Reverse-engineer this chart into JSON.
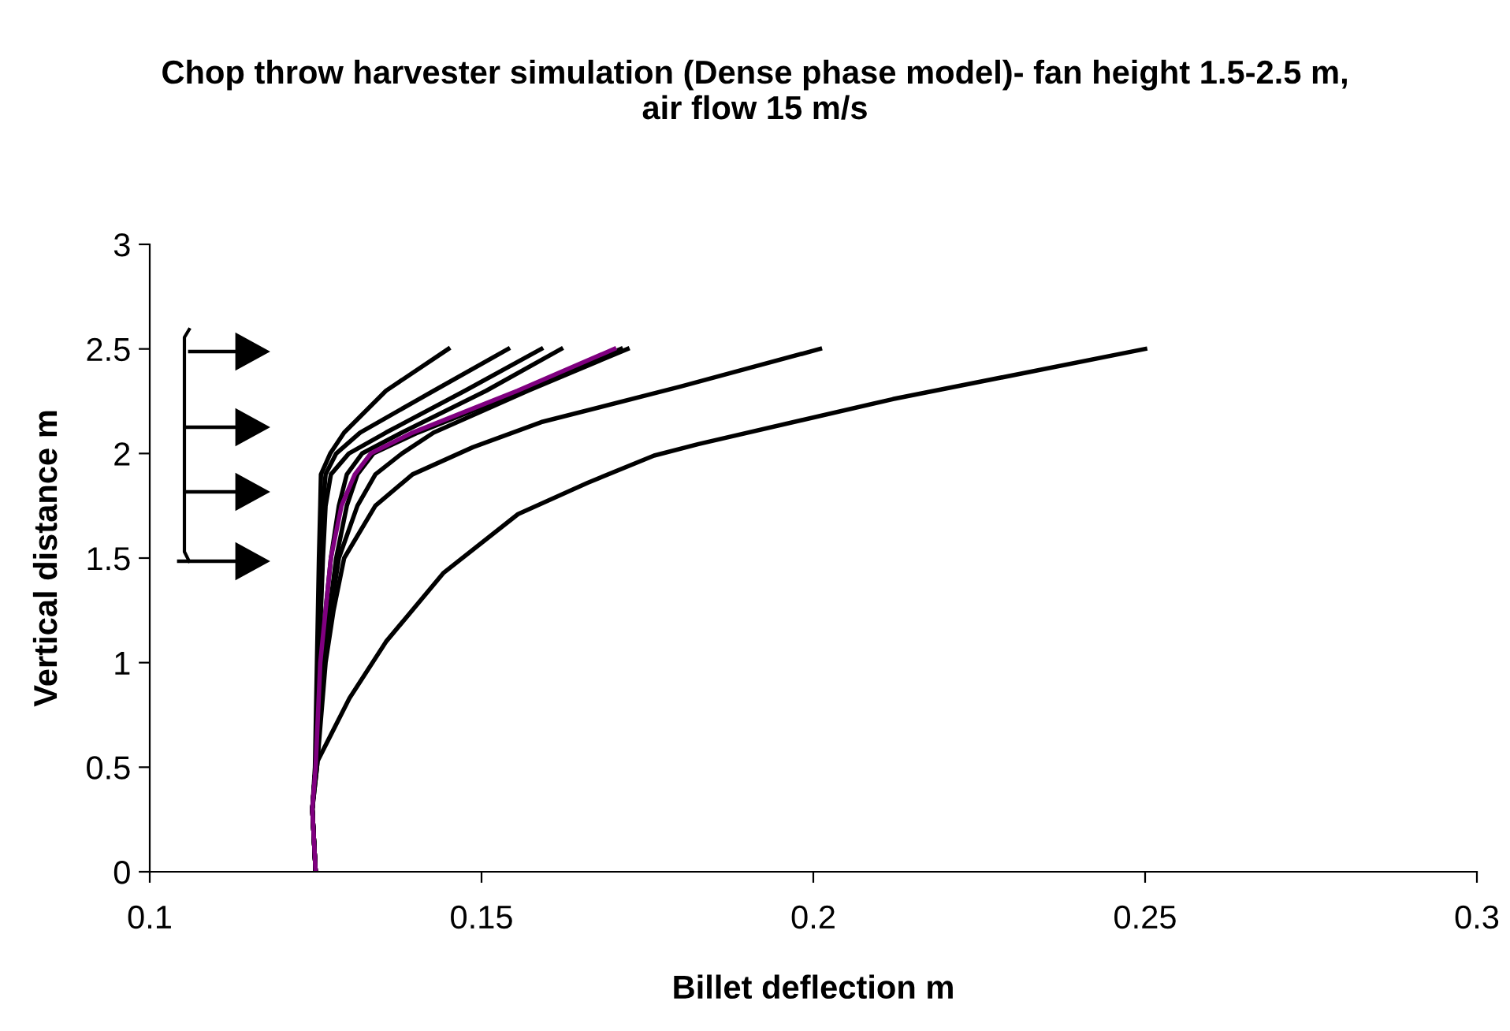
{
  "chart_data": {
    "type": "line",
    "title": "Chop throw harvester simulation (Dense phase model)- fan height 1.5-2.5 m, air flow 15 m/s",
    "xlabel": "Billet deflection m",
    "ylabel": "Vertical distance m",
    "xlim": [
      0.1,
      0.3
    ],
    "xticks": [
      0.1,
      0.15,
      0.2,
      0.25,
      0.3
    ],
    "ylim": [
      0,
      3
    ],
    "yticks": [
      0,
      0.5,
      1,
      1.5,
      2,
      2.5,
      3
    ],
    "grid": false,
    "legend": false,
    "marker": "none",
    "line_style": "solid",
    "series": [
      {
        "color": "#000000",
        "x": [
          0.125,
          0.1245,
          0.1249,
          0.1252,
          0.1255,
          0.1257,
          0.1258,
          0.1272,
          0.1293,
          0.1356,
          0.145
        ],
        "values": [
          0,
          0.3,
          0.5,
          1.0,
          1.5,
          1.75,
          1.9,
          2.0,
          2.1,
          2.3,
          2.5
        ]
      },
      {
        "color": "#000000",
        "x": [
          0.125,
          0.1245,
          0.125,
          0.1254,
          0.1257,
          0.1261,
          0.1265,
          0.1281,
          0.1317,
          0.1428,
          0.154
        ],
        "values": [
          0,
          0.3,
          0.5,
          1.0,
          1.5,
          1.75,
          1.9,
          2.0,
          2.1,
          2.3,
          2.5
        ]
      },
      {
        "color": "#000000",
        "x": [
          0.125,
          0.1245,
          0.125,
          0.1255,
          0.1261,
          0.1265,
          0.1273,
          0.13,
          0.1356,
          0.1475,
          0.159
        ],
        "values": [
          0,
          0.3,
          0.5,
          1.0,
          1.5,
          1.75,
          1.9,
          2.0,
          2.1,
          2.3,
          2.5
        ]
      },
      {
        "color": "#000000",
        "x": [
          0.125,
          0.1245,
          0.125,
          0.1257,
          0.1273,
          0.1285,
          0.1297,
          0.132,
          0.138,
          0.1507,
          0.162
        ],
        "values": [
          0,
          0.3,
          0.5,
          1.0,
          1.5,
          1.75,
          1.9,
          2.0,
          2.1,
          2.3,
          2.5
        ]
      },
      {
        "color": "#000000",
        "x": [
          0.125,
          0.1245,
          0.125,
          0.1261,
          0.1281,
          0.1297,
          0.1313,
          0.1337,
          0.1404,
          0.1562,
          0.171
        ],
        "values": [
          0,
          0.3,
          0.5,
          1.0,
          1.5,
          1.75,
          1.9,
          2.0,
          2.1,
          2.3,
          2.5
        ]
      },
      {
        "color": "#000000",
        "x": [
          0.125,
          0.1245,
          0.125,
          0.1261,
          0.1285,
          0.1313,
          0.134,
          0.138,
          0.1428,
          0.157,
          0.172
        ],
        "values": [
          0,
          0.3,
          0.5,
          1.0,
          1.5,
          1.75,
          1.9,
          2.0,
          2.1,
          2.3,
          2.5
        ]
      },
      {
        "color": "#000000",
        "x": [
          0.125,
          0.1245,
          0.1252,
          0.1265,
          0.1277,
          0.1293,
          0.134,
          0.1396,
          0.1487,
          0.159,
          0.18,
          0.201
        ],
        "values": [
          0,
          0.3,
          0.5,
          1.0,
          1.25,
          1.5,
          1.75,
          1.9,
          2.03,
          2.15,
          2.32,
          2.5
        ]
      },
      {
        "color": "#000000",
        "x": [
          0.125,
          0.1245,
          0.1253,
          0.1301,
          0.1356,
          0.1443,
          0.1555,
          0.166,
          0.176,
          0.1827,
          0.212,
          0.25
        ],
        "values": [
          0,
          0.3,
          0.53,
          0.83,
          1.1,
          1.43,
          1.71,
          1.86,
          1.99,
          2.045,
          2.26,
          2.5
        ]
      },
      {
        "color": "#800080",
        "x": [
          0.125,
          0.1245,
          0.125,
          0.1257,
          0.1273,
          0.1289,
          0.1309,
          0.1333,
          0.1396,
          0.1554,
          0.17
        ],
        "values": [
          0,
          0.3,
          0.5,
          1.0,
          1.5,
          1.75,
          1.9,
          2.0,
          2.1,
          2.3,
          2.5
        ]
      }
    ]
  }
}
